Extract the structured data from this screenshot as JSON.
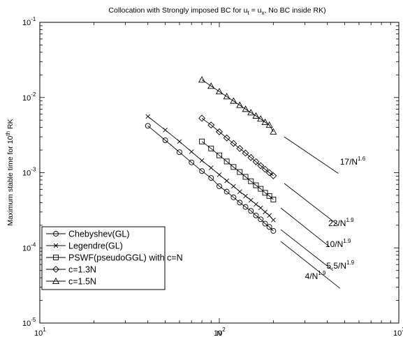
{
  "chart_data": {
    "type": "line",
    "title": {
      "base": "Collocation with Strongly imposed BC for u",
      "sub1": "t",
      "mid": " = u",
      "sub2": "x",
      "tail": ", No BC inside RK)"
    },
    "xlabel": "N",
    "ylabel": {
      "base": "Maximum stable time for 10",
      "sup": "th",
      "tail": " RK"
    },
    "xscale": "log",
    "yscale": "log",
    "xlim": [
      10,
      1000
    ],
    "ylim": [
      1e-05,
      0.1
    ],
    "grid": false,
    "legend_position": "bottom-left",
    "x_ticks": [
      {
        "value": 10,
        "base": "10",
        "exp": "1"
      },
      {
        "value": 100,
        "base": "10",
        "exp": "2"
      },
      {
        "value": 1000,
        "base": "10",
        "exp": "3"
      }
    ],
    "y_ticks": [
      {
        "value": 1e-05,
        "base": "10",
        "exp": "-5"
      },
      {
        "value": 0.0001,
        "base": "10",
        "exp": "-4"
      },
      {
        "value": 0.001,
        "base": "10",
        "exp": "-3"
      },
      {
        "value": 0.01,
        "base": "10",
        "exp": "-2"
      },
      {
        "value": 0.1,
        "base": "10",
        "exp": "-1"
      }
    ],
    "series": [
      {
        "name": "Chebyshev(GL)",
        "marker": "circle",
        "x": [
          40,
          50,
          60,
          70,
          80,
          90,
          100,
          110,
          120,
          130,
          140,
          150,
          160,
          170,
          180,
          190,
          200
        ],
        "y": [
          0.0042,
          0.0027,
          0.00187,
          0.00137,
          0.00105,
          0.00085,
          0.00066,
          0.00056,
          0.00047,
          0.0004,
          0.00035,
          0.00031,
          0.00027,
          0.00024,
          0.00021,
          0.00019,
          0.000168
        ]
      },
      {
        "name": "Legendre(GL)",
        "marker": "x",
        "x": [
          40,
          50,
          60,
          70,
          80,
          90,
          100,
          110,
          120,
          130,
          140,
          150,
          160,
          170,
          180,
          190,
          200
        ],
        "y": [
          0.0056,
          0.0037,
          0.0026,
          0.0019,
          0.00145,
          0.00116,
          0.00094,
          0.00078,
          0.00066,
          0.00056,
          0.00049,
          0.00043,
          0.00038,
          0.00034,
          0.0003,
          0.00027,
          0.000235
        ]
      },
      {
        "name": "PSWF(pseudoGGL) with c=N",
        "marker": "square",
        "x": [
          80,
          90,
          100,
          110,
          120,
          130,
          140,
          150,
          160,
          170,
          180,
          190,
          200
        ],
        "y": [
          0.0026,
          0.0021,
          0.0017,
          0.00141,
          0.00119,
          0.00102,
          0.00088,
          0.00077,
          0.00068,
          0.00061,
          0.00054,
          0.00049,
          0.00044
        ]
      },
      {
        "name": "c=1.3N",
        "marker": "diamond",
        "x": [
          80,
          90,
          100,
          110,
          120,
          130,
          140,
          150,
          160,
          170,
          180,
          190,
          200
        ],
        "y": [
          0.0053,
          0.0043,
          0.0035,
          0.0029,
          0.00245,
          0.0021,
          0.00182,
          0.00159,
          0.0014,
          0.00124,
          0.00111,
          0.001,
          0.00091
        ]
      },
      {
        "name": "c=1.5N",
        "marker": "triangle",
        "x": [
          80,
          90,
          100,
          110,
          120,
          130,
          140,
          150,
          160,
          170,
          180,
          190,
          200
        ],
        "y": [
          0.0172,
          0.0142,
          0.012,
          0.0103,
          0.009,
          0.0079,
          0.007,
          0.0063,
          0.0057,
          0.0052,
          0.0047,
          0.0043,
          0.0035
        ]
      }
    ],
    "reference_lines": [
      {
        "label_base": "17/N",
        "label_exp": "1.6",
        "x": [
          230,
          460
        ],
        "y": [
          0.003,
          0.00098
        ]
      },
      {
        "label_base": "22/N",
        "label_exp": "1.9",
        "x": [
          230,
          460
        ],
        "y": [
          0.00072,
          0.0002
        ]
      },
      {
        "label_base": "10/N",
        "label_exp": "1.9",
        "x": [
          220,
          410
        ],
        "y": [
          0.00034,
          0.000104
        ]
      },
      {
        "label_base": "5.5/N",
        "label_exp": "1.9",
        "x": [
          220,
          430
        ],
        "y": [
          0.000175,
          5e-05
        ]
      },
      {
        "label_base": "4/N",
        "label_exp": "1.9",
        "x": [
          220,
          470
        ],
        "y": [
          0.000122,
          2.9e-05
        ]
      }
    ],
    "annotations": [
      {
        "base": "17/N",
        "exp": "1.6",
        "x": 470,
        "y": 0.00128
      },
      {
        "base": "22/N",
        "exp": "1.9",
        "x": 405,
        "y": 0.000195
      },
      {
        "base": "10/N",
        "exp": "1.9",
        "x": 390,
        "y": 0.000103
      },
      {
        "base": "5.5/N",
        "exp": "1.9",
        "x": 395,
        "y": 5.3e-05
      },
      {
        "base": "4/N",
        "exp": "1.9",
        "x": 300,
        "y": 3.85e-05
      }
    ]
  }
}
